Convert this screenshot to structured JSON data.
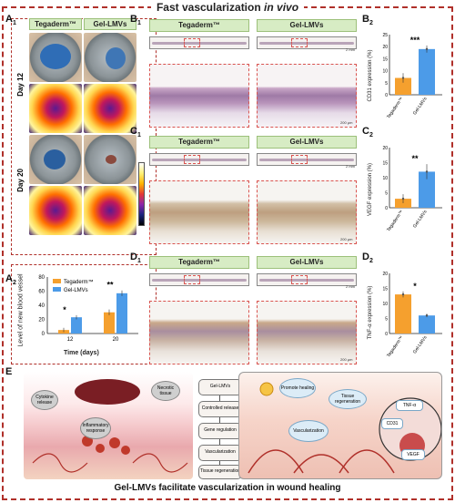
{
  "figure": {
    "title_main": "Fast vascularization ",
    "title_italic": "in vivo",
    "caption": "Gel-LMVs facilitate vascularization in wound healing"
  },
  "panel_labels": {
    "A1": "A",
    "A1_sub": "1",
    "A2": "A",
    "A2_sub": "2",
    "B1": "B",
    "B1_sub": "1",
    "B2": "B",
    "B2_sub": "2",
    "C1": "C",
    "C1_sub": "1",
    "C2": "C",
    "C2_sub": "2",
    "D1": "D",
    "D1_sub": "1",
    "D2": "D",
    "D2_sub": "2",
    "E": "E"
  },
  "groups": {
    "tegaderm": "Tegaderm™",
    "gel": "Gel-LMVs"
  },
  "days": {
    "d12": "Day 12",
    "d20": "Day 20"
  },
  "scale": {
    "thin": "2 mm",
    "big": "200 μm"
  },
  "colors": {
    "tegaderm": "#f5a02e",
    "gel": "#4c9be8",
    "frame": "#b0302a"
  },
  "chart_data": [
    {
      "id": "A2",
      "type": "bar",
      "ylabel": "Level of new blood vessel",
      "xlabel": "Time (days)",
      "categories": [
        "12",
        "20"
      ],
      "ylim": [
        0,
        80
      ],
      "yticks": [
        "0",
        "20",
        "40",
        "60",
        "80"
      ],
      "series": [
        {
          "name": "Tegaderm™",
          "values": [
            5,
            30
          ],
          "err": [
            3,
            4
          ]
        },
        {
          "name": "Gel-LMVs",
          "values": [
            23,
            57
          ],
          "err": [
            3,
            4
          ]
        }
      ],
      "significance": [
        "*",
        "**"
      ],
      "legend": "top-left"
    },
    {
      "id": "B2",
      "type": "bar",
      "ylabel": "CD31 expression (%)",
      "categories": [
        "Tegaderm™",
        "Gel-LMVs"
      ],
      "values": [
        7,
        19
      ],
      "err": [
        2,
        1.5
      ],
      "ylim": [
        0,
        25
      ],
      "yticks": [
        "0",
        "5",
        "10",
        "15",
        "20",
        "25"
      ],
      "significance": "***"
    },
    {
      "id": "C2",
      "type": "bar",
      "ylabel": "VEGF expression (%)",
      "categories": [
        "Tegaderm™",
        "Gel-LMVs"
      ],
      "values": [
        3,
        12
      ],
      "err": [
        1.5,
        2.5
      ],
      "ylim": [
        0,
        20
      ],
      "yticks": [
        "0",
        "5",
        "10",
        "15",
        "20"
      ],
      "significance": "**"
    },
    {
      "id": "D2",
      "type": "bar",
      "ylabel": "TNF-α expression (%)",
      "categories": [
        "Tegaderm™",
        "Gel-LMVs"
      ],
      "values": [
        13,
        6
      ],
      "err": [
        1,
        0.6
      ],
      "ylim": [
        0,
        20
      ],
      "yticks": [
        "0",
        "5",
        "10",
        "15",
        "20"
      ],
      "significance": "*"
    }
  ],
  "schematic": {
    "flow": [
      "Gel-LMVs",
      "Controlled release",
      "Gene regulation",
      "Vascularization",
      "Tissue regeneration"
    ],
    "left_labels": [
      "Cytokine release",
      "Inflammatory response",
      "Necrotic tissue"
    ],
    "right_labels": [
      "Promote healing",
      "Tissue regeneration",
      "Vascularization"
    ],
    "markers": [
      "TNF-α",
      "CD31",
      "VEGF"
    ]
  }
}
